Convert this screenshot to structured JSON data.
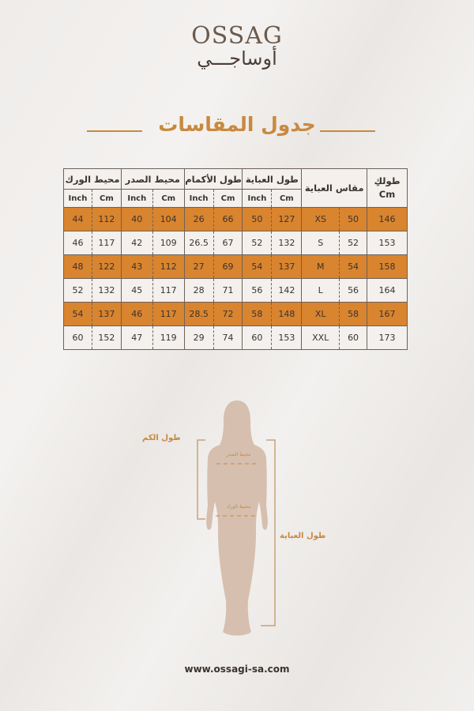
{
  "logo": {
    "latin": "OSSAG",
    "arabic": "أوساجـــي"
  },
  "title": "جدول المقاسات",
  "table": {
    "headers": {
      "hip": "محيط الورك",
      "chest": "محيط الصدر",
      "sleeve": "طول الأكمام",
      "abaya_length": "طول العباية",
      "abaya_size": "مقاس العباية",
      "height": "طولكِ",
      "height_unit": "Cm",
      "inch": "Inch",
      "cm": "Cm"
    },
    "rows": [
      {
        "hip_in": "44",
        "hip_cm": "112",
        "chest_in": "40",
        "chest_cm": "104",
        "sleeve_in": "26",
        "sleeve_cm": "66",
        "len_in": "50",
        "len_cm": "127",
        "size": "XS",
        "size_num": "50",
        "height": "146"
      },
      {
        "hip_in": "46",
        "hip_cm": "117",
        "chest_in": "42",
        "chest_cm": "109",
        "sleeve_in": "26.5",
        "sleeve_cm": "67",
        "len_in": "52",
        "len_cm": "132",
        "size": "S",
        "size_num": "52",
        "height": "153"
      },
      {
        "hip_in": "48",
        "hip_cm": "122",
        "chest_in": "43",
        "chest_cm": "112",
        "sleeve_in": "27",
        "sleeve_cm": "69",
        "len_in": "54",
        "len_cm": "137",
        "size": "M",
        "size_num": "54",
        "height": "158"
      },
      {
        "hip_in": "52",
        "hip_cm": "132",
        "chest_in": "45",
        "chest_cm": "117",
        "sleeve_in": "28",
        "sleeve_cm": "71",
        "len_in": "56",
        "len_cm": "142",
        "size": "L",
        "size_num": "56",
        "height": "164"
      },
      {
        "hip_in": "54",
        "hip_cm": "137",
        "chest_in": "46",
        "chest_cm": "117",
        "sleeve_in": "28.5",
        "sleeve_cm": "72",
        "len_in": "58",
        "len_cm": "148",
        "size": "XL",
        "size_num": "58",
        "height": "167"
      },
      {
        "hip_in": "60",
        "hip_cm": "152",
        "chest_in": "47",
        "chest_cm": "119",
        "sleeve_in": "29",
        "sleeve_cm": "74",
        "len_in": "60",
        "len_cm": "153",
        "size": "XXL",
        "size_num": "60",
        "height": "173"
      }
    ]
  },
  "figure": {
    "sleeve_label": "طول الكم",
    "abaya_length_label": "طول العباية",
    "chest_label": "محيط الصدر",
    "hip_label": "محيط الورك"
  },
  "footer": "www.ossagi-sa.com",
  "colors": {
    "accent": "#d9842e",
    "title": "#c8893f",
    "silhouette": "#d6bfae"
  }
}
